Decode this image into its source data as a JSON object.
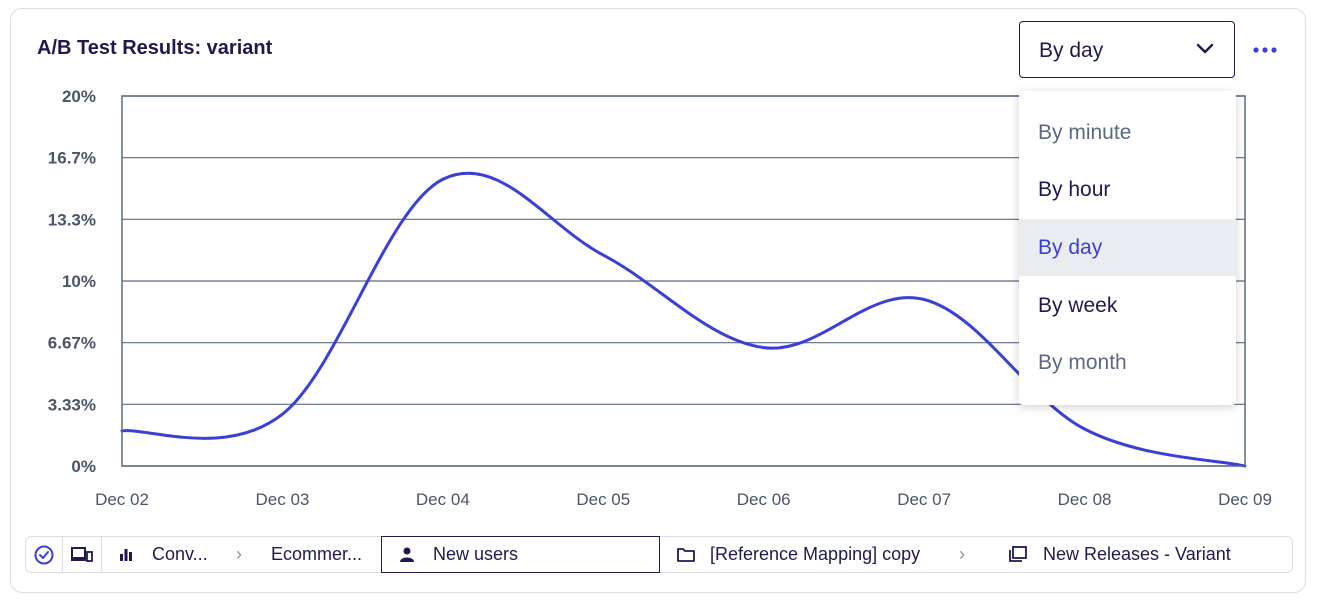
{
  "chart_data": {
    "type": "line",
    "title": "A/B Test Results: variant",
    "x": [
      "Dec 02",
      "Dec 03",
      "Dec 04",
      "Dec 05",
      "Dec 06",
      "Dec 07",
      "Dec 08",
      "Dec 09"
    ],
    "series": [
      {
        "values": [
          1.9,
          2.8,
          15.5,
          11.4,
          6.4,
          9.0,
          2.0,
          0.0
        ]
      }
    ],
    "yticks": [
      "0%",
      "3.33%",
      "6.67%",
      "10%",
      "13.3%",
      "16.7%",
      "20%"
    ],
    "ylim": [
      0,
      20
    ],
    "grid": true,
    "line_color": "#3b3fd6"
  },
  "controls": {
    "granularity_value": "By day",
    "options": [
      "By minute",
      "By hour",
      "By day",
      "By week",
      "By month"
    ],
    "selected_option": "By day"
  },
  "breadcrumbs": {
    "items": [
      "Conv...",
      "Ecommer...",
      "New users",
      "[Reference Mapping] copy",
      "New Releases - Variant"
    ]
  },
  "icons": {
    "check": "check-circle-icon",
    "devices": "devices-icon",
    "bars": "bar-chart-icon",
    "user": "user-icon",
    "folder": "folder-icon",
    "copy": "copy-icon",
    "more": "more-icon",
    "chevron": "chevron-down-icon"
  }
}
